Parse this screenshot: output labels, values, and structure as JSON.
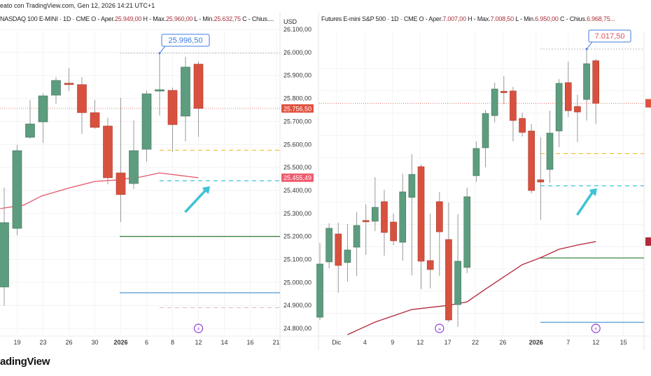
{
  "header": {
    "created_with": "eato con TradingView.com, Gen 12, 2026 14:21 UTC+1",
    "brand_logo": "adingView"
  },
  "colors": {
    "up": "#5d9d7f",
    "down": "#d8513f",
    "ma_left": "#e4576a",
    "ma_right": "#b3283a",
    "callout_border": "#3d7be0",
    "orange_level": "#f0b429",
    "cyan_level": "#3fc3d6",
    "green_level": "#2e7d32",
    "blue_level": "#6aa9d8",
    "event_icon": "#8e3fd6"
  },
  "left_chart": {
    "title": "NASDAQ 100 E-MINI · 1D · CME",
    "o_label": "O - Aper.",
    "o": "25.949,00",
    "h_label": "H - Max.",
    "h": "25.960,00",
    "l_label": "L - Min.",
    "l": "25.632,75",
    "c_label": "C - Chius....",
    "currency": "USD",
    "price_ticks": [
      "26.100,00",
      "26.000,00",
      "25.900,00",
      "25.800,00",
      "25.700,00",
      "25.600,00",
      "25.500,00",
      "25.400,00",
      "25.300,00",
      "25.200,00",
      "25.100,00",
      "25.000,00",
      "24.900,00",
      "24.800,00"
    ],
    "price_tick_values": [
      26100,
      26000,
      25900,
      25800,
      25700,
      25600,
      25500,
      25400,
      25300,
      25200,
      25100,
      25000,
      24900,
      24800
    ],
    "current_price_label": "25.756,50",
    "current_price": 25756.5,
    "ma_price_label": "25.455,49",
    "ma_price": 25455.49,
    "high_callout": "25.996,50",
    "high_value": 25996.5,
    "date_ticks": [
      {
        "label": "19",
        "bar": 1
      },
      {
        "label": "23",
        "bar": 3
      },
      {
        "label": "26",
        "bar": 5
      },
      {
        "label": "30",
        "bar": 7
      },
      {
        "label": "2026",
        "bar": 9,
        "bold": true
      },
      {
        "label": "6",
        "bar": 11
      },
      {
        "label": "8",
        "bar": 13
      },
      {
        "label": "12",
        "bar": 15
      },
      {
        "label": "14",
        "bar": 17
      },
      {
        "label": "16",
        "bar": 19
      },
      {
        "label": "21",
        "bar": 21
      }
    ],
    "candles": [
      [
        24980,
        25412,
        24898,
        25260
      ],
      [
        25235,
        25598,
        25205,
        25573
      ],
      [
        25631,
        25793,
        25625,
        25689
      ],
      [
        25698,
        25823,
        25607,
        25811
      ],
      [
        25814,
        25893,
        25777,
        25878
      ],
      [
        25866,
        25933,
        25832,
        25860
      ],
      [
        25860,
        25893,
        25646,
        25738
      ],
      [
        25738,
        25793,
        25668,
        25674
      ],
      [
        25680,
        25716,
        25427,
        25455
      ],
      [
        25476,
        25802,
        25263,
        25382
      ],
      [
        25430,
        25704,
        25406,
        25573
      ],
      [
        25579,
        25835,
        25525,
        25820
      ],
      [
        25832,
        25996.5,
        25726,
        25838
      ],
      [
        25835,
        25847,
        25567,
        25686
      ],
      [
        25723,
        25981,
        25613,
        25936
      ],
      [
        25949,
        25960,
        25632.75,
        25756.5
      ]
    ],
    "moving_average": [
      [
        -0.3,
        25321
      ],
      [
        1.5,
        25336
      ],
      [
        2.9,
        25376
      ],
      [
        5.1,
        25412
      ],
      [
        7,
        25439
      ],
      [
        8.6,
        25445
      ],
      [
        10.5,
        25458
      ],
      [
        12,
        25476
      ],
      [
        15,
        25455
      ]
    ],
    "levels": {
      "orange_dashed": 25575,
      "cyan_dashed": 25442,
      "green_solid": 25200,
      "blue_solid": 24955,
      "grey_dashed": 24890
    },
    "event_icons": [
      {
        "bar": 15,
        "icon": "lightning-icon"
      }
    ]
  },
  "right_chart": {
    "title": "Futures E-mini S&P 500 · 1D · CME",
    "o_label": "O - Aper.",
    "o": "7.007,00",
    "h_label": "H - Max.",
    "h": "7.008,50",
    "l_label": "L - Min.",
    "l": "6.950,00",
    "c_label": "C - Chius.",
    "c": "6.968,75...",
    "high_callout": "7.017,50",
    "high_value": 7017.5,
    "current_price": 6968.75,
    "date_ticks": [
      {
        "label": "Dic",
        "bar": 1.8
      },
      {
        "label": "4",
        "bar": 4.9
      },
      {
        "label": "9",
        "bar": 7.9
      },
      {
        "label": "12",
        "bar": 10.9
      },
      {
        "label": "17",
        "bar": 13.9
      },
      {
        "label": "22",
        "bar": 16.9
      },
      {
        "label": "26",
        "bar": 19.9
      },
      {
        "label": "2026",
        "bar": 23.5,
        "bold": true
      },
      {
        "label": "7",
        "bar": 27
      },
      {
        "label": "12",
        "bar": 30
      },
      {
        "label": "15",
        "bar": 33
      }
    ],
    "candles": [
      [
        6776.6,
        6843.3,
        6774.1,
        6824.4
      ],
      [
        6826.3,
        6860.9,
        6820.6,
        6856.5
      ],
      [
        6851.4,
        6861.5,
        6798.6,
        6823.1
      ],
      [
        6825.7,
        6860.2,
        6808.7,
        6837
      ],
      [
        6839.5,
        6870.9,
        6813.7,
        6859
      ],
      [
        6863.5,
        6877.9,
        6832.6,
        6863
      ],
      [
        6862.8,
        6902.4,
        6854,
        6875.3
      ],
      [
        6880.4,
        6891.1,
        6831.9,
        6852.7
      ],
      [
        6862.1,
        6869.7,
        6841.4,
        6845.2
      ],
      [
        6843.9,
        6905.5,
        6827.5,
        6889.2
      ],
      [
        6884.2,
        6923.1,
        6814.3,
        6904.9
      ],
      [
        6911.8,
        6913.7,
        6801.8,
        6826.9
      ],
      [
        6827.5,
        6869.7,
        6802.4,
        6819.4
      ],
      [
        6880.4,
        6889.2,
        6813.7,
        6853.3
      ],
      [
        6846.4,
        6879.7,
        6772.2,
        6774.1
      ],
      [
        6787.9,
        6869.1,
        6767.8,
        6826.9
      ],
      [
        6821.3,
        6893,
        6816.2,
        6884.8
      ],
      [
        6903.7,
        6934.5,
        6898,
        6928.2
      ],
      [
        6928.8,
        6962.8,
        6911.2,
        6959.6
      ],
      [
        6957.7,
        6987.3,
        6951.5,
        6981.6
      ],
      [
        6979.5,
        6993,
        6967.8,
        6979
      ],
      [
        6979.8,
        6983.5,
        6934.5,
        6953.3
      ],
      [
        6955.2,
        6960.3,
        6938.9,
        6942.6
      ],
      [
        6943.9,
        6950.2,
        6887.9,
        6890.4
      ],
      [
        6900,
        6938.2,
        6864,
        6898
      ],
      [
        6909.3,
        6962.1,
        6897.4,
        6942
      ],
      [
        6943.9,
        6990.5,
        6929.4,
        6986.7
      ],
      [
        6987.3,
        7006.2,
        6956.5,
        6962.1
      ],
      [
        6965.9,
        6976.6,
        6933.8,
        6960.9
      ],
      [
        6972.2,
        7017.5,
        6953.3,
        7004.3
      ],
      [
        7007,
        7008.5,
        6950,
        6968.75
      ]
    ],
    "moving_average": [
      [
        3,
        6760.9
      ],
      [
        6,
        6772.2
      ],
      [
        10,
        6783.5
      ],
      [
        14,
        6787.3
      ],
      [
        16,
        6790.4
      ],
      [
        18,
        6801.8
      ],
      [
        22,
        6823.8
      ],
      [
        24,
        6830.1
      ],
      [
        26,
        6837.6
      ],
      [
        28,
        6841.4
      ],
      [
        30,
        6844.5
      ]
    ],
    "levels": {
      "orange_dashed": 6923.5,
      "cyan_dashed": 6894.6,
      "green_solid": 6829.8,
      "blue_solid": 6772
    },
    "event_icons": [
      {
        "bar": 13,
        "icon": "arrow-in-circle-icon"
      },
      {
        "bar": 30,
        "icon": "lightning-icon"
      }
    ]
  }
}
